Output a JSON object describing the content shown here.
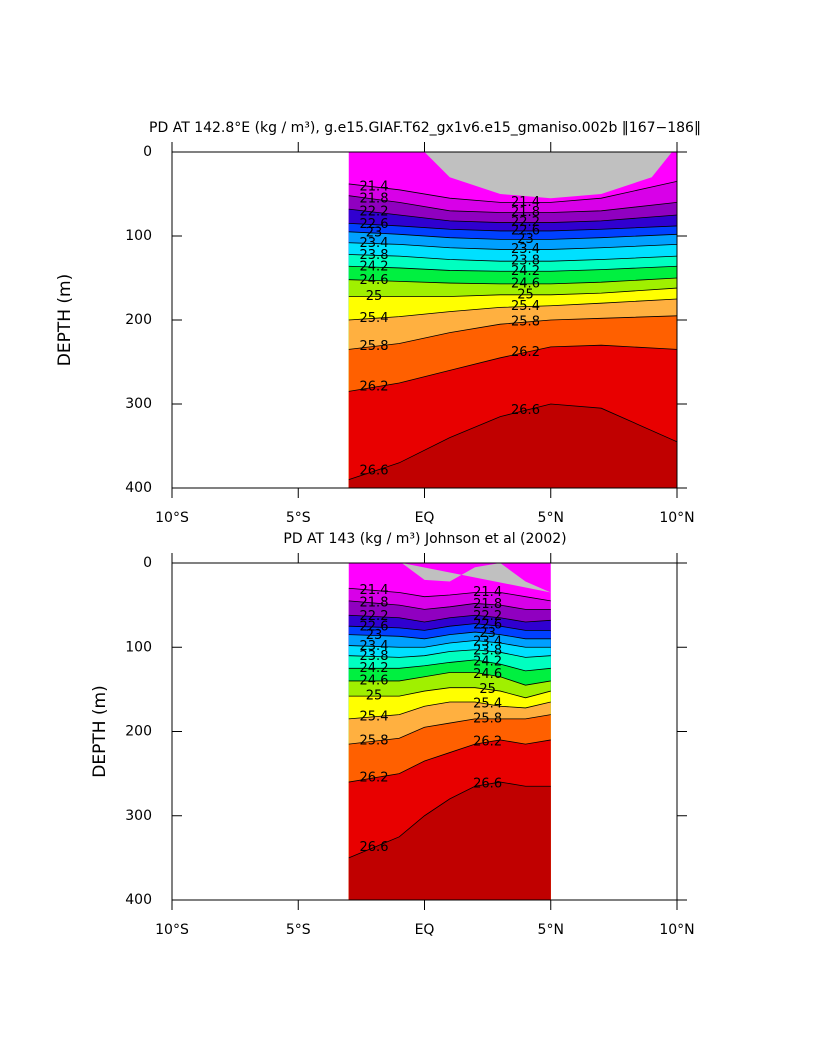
{
  "chart_data": [
    {
      "type": "contour",
      "title": "PD AT 142.8°E (kg / m³), g.e15.GIAF.T62_gx1v6.e15_gmaniso.002b ‖167−186‖",
      "ylabel": "DEPTH (m)",
      "xlim": [
        -10,
        10
      ],
      "xticks": [
        {
          "value": -10,
          "label": "10°S"
        },
        {
          "value": -5,
          "label": "5°S"
        },
        {
          "value": 0,
          "label": "EQ"
        },
        {
          "value": 5,
          "label": "5°N"
        },
        {
          "value": 10,
          "label": "10°N"
        }
      ],
      "ylim": [
        0,
        400
      ],
      "yticks": [
        0,
        100,
        200,
        300,
        400
      ],
      "y_inverted": true,
      "x": [
        -3,
        -1,
        1,
        3,
        5,
        7,
        10
      ],
      "colors": [
        "#ff00ff",
        "#d800e8",
        "#9000c0",
        "#3000d0",
        "#0040ff",
        "#00a0ff",
        "#00e0ff",
        "#00ffc0",
        "#00f040",
        "#a0f000",
        "#ffff00",
        "#ffb040",
        "#ff6000",
        "#e80000",
        "#c00000"
      ],
      "contours": [
        {
          "level": 21.4,
          "depths": [
            38,
            45,
            55,
            60,
            60,
            55,
            35
          ]
        },
        {
          "level": 21.8,
          "depths": [
            52,
            60,
            70,
            72,
            72,
            70,
            60
          ]
        },
        {
          "level": 22.2,
          "depths": [
            68,
            75,
            82,
            84,
            84,
            82,
            75
          ]
        },
        {
          "level": 22.6,
          "depths": [
            85,
            88,
            92,
            94,
            94,
            92,
            88
          ]
        },
        {
          "level": 23,
          "depths": [
            95,
            98,
            102,
            104,
            104,
            102,
            98
          ]
        },
        {
          "level": 23.4,
          "depths": [
            108,
            110,
            114,
            116,
            116,
            114,
            110
          ]
        },
        {
          "level": 23.8,
          "depths": [
            122,
            124,
            128,
            130,
            130,
            128,
            124
          ]
        },
        {
          "level": 24.2,
          "depths": [
            136,
            138,
            141,
            142,
            142,
            140,
            136
          ]
        },
        {
          "level": 24.6,
          "depths": [
            152,
            154,
            156,
            157,
            157,
            155,
            150
          ]
        },
        {
          "level": 25,
          "depths": [
            172,
            172,
            172,
            170,
            170,
            168,
            162
          ]
        },
        {
          "level": 25.4,
          "depths": [
            200,
            196,
            190,
            185,
            183,
            180,
            175
          ]
        },
        {
          "level": 25.8,
          "depths": [
            235,
            228,
            215,
            205,
            200,
            198,
            195
          ]
        },
        {
          "level": 26.2,
          "depths": [
            285,
            275,
            260,
            245,
            232,
            230,
            235
          ]
        },
        {
          "level": 26.6,
          "depths": [
            390,
            370,
            340,
            315,
            300,
            305,
            345
          ]
        }
      ],
      "missing": {
        "x": [
          0,
          1,
          3,
          5,
          7,
          9,
          9.8
        ],
        "depths": [
          0,
          30,
          50,
          55,
          50,
          30,
          0
        ],
        "color": "#c0c0c0"
      }
    },
    {
      "type": "contour",
      "title": "PD AT 143 (kg / m³) Johnson et al (2002)",
      "ylabel": "DEPTH (m)",
      "xlim": [
        -10,
        10
      ],
      "xticks": [
        {
          "value": -10,
          "label": "10°S"
        },
        {
          "value": -5,
          "label": "5°S"
        },
        {
          "value": 0,
          "label": "EQ"
        },
        {
          "value": 5,
          "label": "5°N"
        },
        {
          "value": 10,
          "label": "10°N"
        }
      ],
      "ylim": [
        0,
        400
      ],
      "yticks": [
        0,
        100,
        200,
        300,
        400
      ],
      "y_inverted": true,
      "x": [
        -3,
        -1,
        0,
        1,
        2,
        3,
        4,
        5
      ],
      "colors": [
        "#ff00ff",
        "#d800e8",
        "#9000c0",
        "#3000d0",
        "#0040ff",
        "#00a0ff",
        "#00e0ff",
        "#00ffc0",
        "#00f040",
        "#a0f000",
        "#ffff00",
        "#ffb040",
        "#ff6000",
        "#e80000",
        "#c00000"
      ],
      "contours": [
        {
          "level": 21.4,
          "depths": [
            30,
            35,
            40,
            38,
            35,
            35,
            40,
            45
          ]
        },
        {
          "level": 21.8,
          "depths": [
            45,
            50,
            55,
            52,
            48,
            50,
            55,
            55
          ]
        },
        {
          "level": 22.2,
          "depths": [
            62,
            65,
            70,
            65,
            62,
            65,
            70,
            68
          ]
        },
        {
          "level": 22.6,
          "depths": [
            75,
            77,
            80,
            75,
            72,
            75,
            80,
            80
          ]
        },
        {
          "level": 23,
          "depths": [
            85,
            87,
            90,
            85,
            82,
            85,
            90,
            90
          ]
        },
        {
          "level": 23.4,
          "depths": [
            98,
            100,
            100,
            95,
            92,
            95,
            100,
            100
          ]
        },
        {
          "level": 23.8,
          "depths": [
            110,
            112,
            110,
            105,
            103,
            106,
            112,
            110
          ]
        },
        {
          "level": 24.2,
          "depths": [
            125,
            125,
            122,
            118,
            115,
            120,
            128,
            125
          ]
        },
        {
          "level": 24.6,
          "depths": [
            140,
            140,
            135,
            130,
            130,
            135,
            145,
            140
          ]
        },
        {
          "level": 25,
          "depths": [
            158,
            158,
            152,
            148,
            148,
            152,
            160,
            152
          ]
        },
        {
          "level": 25.4,
          "depths": [
            185,
            180,
            170,
            165,
            165,
            170,
            172,
            165
          ]
        },
        {
          "level": 25.8,
          "depths": [
            215,
            208,
            195,
            190,
            185,
            185,
            185,
            180
          ]
        },
        {
          "level": 26.2,
          "depths": [
            260,
            250,
            235,
            225,
            215,
            210,
            215,
            210
          ]
        },
        {
          "level": 26.6,
          "depths": [
            350,
            325,
            300,
            280,
            265,
            260,
            265,
            265
          ]
        }
      ],
      "missing": {
        "x": [
          -0.9,
          0,
          1,
          2,
          3,
          4,
          5
        ],
        "depths": [
          0,
          20,
          22,
          5,
          0,
          22,
          35
        ],
        "color": "#c0c0c0"
      }
    }
  ]
}
